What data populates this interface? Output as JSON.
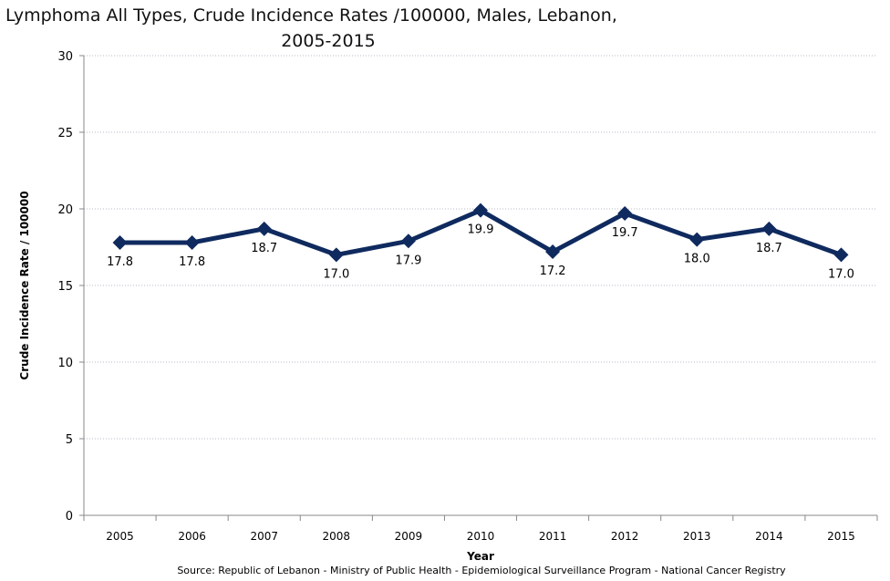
{
  "chart_data": {
    "type": "line",
    "title_line1": "Lymphoma All Types, Crude Incidence Rates /100000,  Males, Lebanon,",
    "title_line2": "2005-2015",
    "xlabel": "Year",
    "ylabel": "Crude Incidence Rate / 100000",
    "categories": [
      "2005",
      "2006",
      "2007",
      "2008",
      "2009",
      "2010",
      "2011",
      "2012",
      "2013",
      "2014",
      "2015"
    ],
    "series": [
      {
        "name": "Males",
        "values": [
          17.8,
          17.8,
          18.7,
          17.0,
          17.9,
          19.9,
          17.2,
          19.7,
          18.0,
          18.7,
          17.0
        ]
      }
    ],
    "data_labels": [
      "17.8",
      "17.8",
      "18.7",
      "17.0",
      "17.9",
      "19.9",
      "17.2",
      "19.7",
      "18.0",
      "18.7",
      "17.0"
    ],
    "ylim": [
      0,
      30
    ],
    "yticks": [
      0,
      5,
      10,
      15,
      20,
      25,
      30
    ],
    "grid": true,
    "legend": "none",
    "line_color": "#0f2a5e",
    "source": "Source:  Republic of Lebanon - Ministry of Public Health - Epidemiological Surveillance Program - National Cancer Registry"
  }
}
